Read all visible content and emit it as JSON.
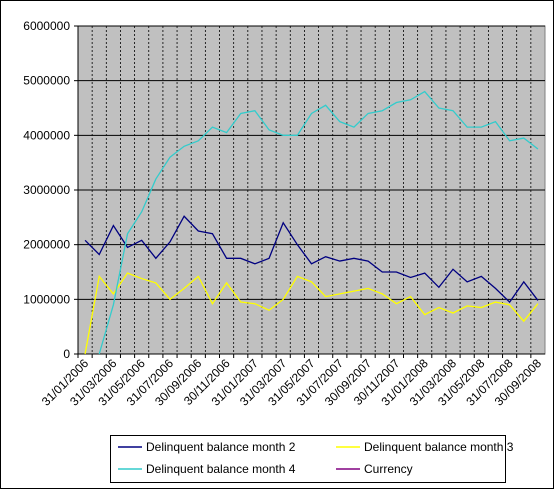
{
  "chart_data": {
    "type": "line",
    "categories": [
      "31/01/2006",
      null,
      "31/03/2006",
      null,
      "31/05/2006",
      null,
      "31/07/2006",
      null,
      "30/09/2006",
      null,
      "30/11/2006",
      null,
      "31/01/2007",
      null,
      "31/03/2007",
      null,
      "31/05/2007",
      null,
      "31/07/2007",
      null,
      "30/09/2007",
      null,
      "30/11/2007",
      null,
      "31/01/2008",
      null,
      "31/03/2008",
      null,
      "31/05/2008",
      null,
      "31/07/2008",
      null,
      "30/09/2008"
    ],
    "series": [
      {
        "name": "Delinquent balance month 2",
        "color": "#000080",
        "values": [
          2080000,
          1820000,
          2350000,
          1950000,
          2080000,
          1750000,
          2050000,
          2520000,
          2250000,
          2200000,
          1750000,
          1750000,
          1650000,
          1750000,
          2400000,
          2000000,
          1650000,
          1780000,
          1700000,
          1750000,
          1700000,
          1500000,
          1500000,
          1400000,
          1480000,
          1220000,
          1550000,
          1320000,
          1420000,
          1200000,
          950000,
          1320000,
          980000
        ]
      },
      {
        "name": "Delinquent balance month 3",
        "color": "#ffff00",
        "values": [
          0,
          1420000,
          1100000,
          1480000,
          1380000,
          1300000,
          1000000,
          1200000,
          1420000,
          920000,
          1300000,
          950000,
          920000,
          800000,
          1000000,
          1420000,
          1320000,
          1050000,
          1100000,
          1150000,
          1200000,
          1100000,
          920000,
          1050000,
          720000,
          850000,
          750000,
          880000,
          850000,
          950000,
          900000,
          600000,
          920000
        ]
      },
      {
        "name": "Delinquent balance month 4",
        "color": "#33cccc",
        "values": [
          null,
          0,
          900000,
          2200000,
          2600000,
          3200000,
          3600000,
          3800000,
          3900000,
          4150000,
          4050000,
          4400000,
          4450000,
          4100000,
          4000000,
          4000000,
          4400000,
          4550000,
          4250000,
          4150000,
          4400000,
          4450000,
          4600000,
          4650000,
          4800000,
          4500000,
          4450000,
          4150000,
          4150000,
          4250000,
          3900000,
          3950000,
          3750000
        ]
      },
      {
        "name": "Currency",
        "color": "#800080",
        "values": [
          null,
          null,
          null,
          null,
          null,
          null,
          null,
          null,
          null,
          null,
          null,
          null,
          null,
          null,
          null,
          null,
          null,
          null,
          null,
          null,
          null,
          null,
          null,
          null,
          null,
          null,
          null,
          null,
          null,
          null,
          null,
          null,
          null
        ]
      }
    ],
    "ylim": [
      0,
      6000000
    ],
    "yticks": [
      0,
      1000000,
      2000000,
      3000000,
      4000000,
      5000000,
      6000000
    ],
    "grid": true
  }
}
